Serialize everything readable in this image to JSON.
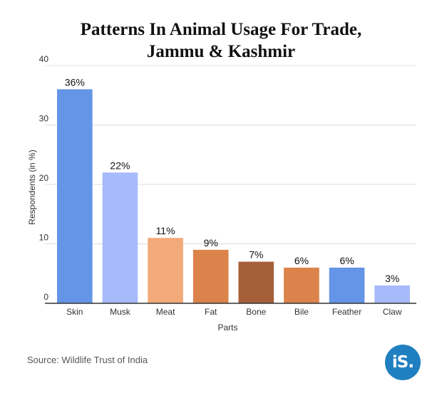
{
  "chart_data": {
    "type": "bar",
    "title_lines": [
      "Patterns In Animal Usage For Trade,",
      "Jammu & Kashmir"
    ],
    "xlabel": "Parts",
    "ylabel": "Respondents (in %)",
    "ylim": [
      0,
      40
    ],
    "yticks": [
      0,
      10,
      20,
      30,
      40
    ],
    "grid": true,
    "categories": [
      "Skin",
      "Musk",
      "Meat",
      "Fat",
      "Bone",
      "Bile",
      "Feather",
      "Claw"
    ],
    "values": [
      36,
      22,
      11,
      9,
      7,
      6,
      6,
      3
    ],
    "data_labels": [
      "36%",
      "22%",
      "11%",
      "9%",
      "7%",
      "6%",
      "6%",
      "3%"
    ],
    "colors": [
      "#6495e6",
      "#a7bbfb",
      "#f3aa7b",
      "#db834a",
      "#a5603a",
      "#db834a",
      "#6495e6",
      "#a7bbfb"
    ]
  },
  "footer": {
    "source": "Source: Wildlife Trust of India",
    "logo_text": "iS."
  }
}
